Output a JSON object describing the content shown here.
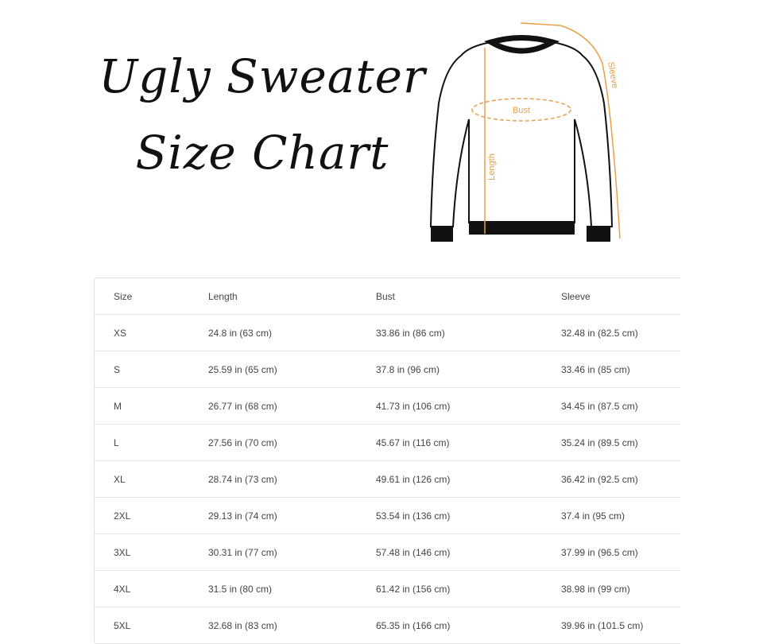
{
  "title": {
    "line1": "Ugly Sweater",
    "line2": "Size Chart"
  },
  "diagram": {
    "labels": {
      "bust": "Bust",
      "length": "Length",
      "sleeve": "Sleeve"
    },
    "accent_color": "#e8a048"
  },
  "table": {
    "headers": [
      "Size",
      "Length",
      "Bust",
      "Sleeve"
    ],
    "rows": [
      [
        "XS",
        "24.8 in (63 cm)",
        "33.86 in (86 cm)",
        "32.48 in (82.5 cm)"
      ],
      [
        "S",
        "25.59 in (65 cm)",
        "37.8 in (96 cm)",
        "33.46 in (85 cm)"
      ],
      [
        "M",
        "26.77 in (68 cm)",
        "41.73 in (106 cm)",
        "34.45 in (87.5 cm)"
      ],
      [
        "L",
        "27.56 in (70 cm)",
        "45.67 in (116 cm)",
        "35.24 in (89.5 cm)"
      ],
      [
        "XL",
        "28.74 in (73 cm)",
        "49.61 in (126 cm)",
        "36.42 in (92.5 cm)"
      ],
      [
        "2XL",
        "29.13 in (74 cm)",
        "53.54 in (136 cm)",
        "37.4 in (95 cm)"
      ],
      [
        "3XL",
        "30.31 in (77 cm)",
        "57.48 in (146 cm)",
        "37.99 in (96.5 cm)"
      ],
      [
        "4XL",
        "31.5 in (80 cm)",
        "61.42 in (156 cm)",
        "38.98 in (99 cm)"
      ],
      [
        "5XL",
        "32.68 in (83 cm)",
        "65.35 in (166 cm)",
        "39.96 in (101.5 cm)"
      ]
    ]
  }
}
